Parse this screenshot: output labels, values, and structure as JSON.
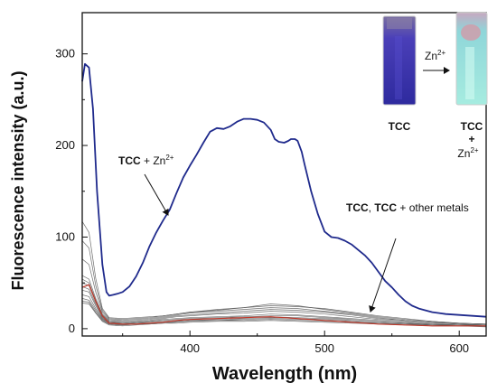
{
  "chart_data": {
    "type": "line",
    "xlabel": "Wavelength (nm)",
    "ylabel": "Fluorescence intensity (a.u.)",
    "xlim": [
      320,
      620
    ],
    "ylim": [
      -8,
      345
    ],
    "x_ticks": [
      400,
      500,
      600
    ],
    "y_ticks": [
      0,
      100,
      200,
      300
    ],
    "grid": false,
    "series": [
      {
        "name": "TCC + Zn²⁺",
        "color": "#1f2a8c",
        "x": [
          320,
          322,
          325,
          328,
          331,
          335,
          338,
          340,
          343,
          346,
          350,
          355,
          360,
          365,
          370,
          375,
          380,
          385,
          390,
          395,
          400,
          405,
          410,
          415,
          420,
          425,
          430,
          435,
          440,
          445,
          450,
          455,
          460,
          463,
          466,
          470,
          473,
          475,
          478,
          480,
          483,
          485,
          490,
          495,
          500,
          505,
          510,
          515,
          520,
          525,
          530,
          535,
          540,
          545,
          550,
          555,
          560,
          565,
          570,
          575,
          580,
          585,
          590,
          600,
          610,
          620
        ],
        "y": [
          270,
          289,
          285,
          240,
          150,
          70,
          40,
          36,
          37,
          38,
          40,
          46,
          57,
          72,
          90,
          105,
          118,
          130,
          148,
          165,
          178,
          190,
          203,
          215,
          219,
          218,
          221,
          226,
          229,
          229,
          228,
          225,
          217,
          207,
          204,
          203,
          205,
          207,
          207,
          205,
          193,
          180,
          150,
          125,
          106,
          100,
          99,
          96,
          92,
          86,
          80,
          72,
          62,
          52,
          45,
          37,
          30,
          25,
          22,
          20,
          18,
          17,
          16,
          15,
          14,
          13
        ]
      },
      {
        "name": "TCC",
        "color": "#c0392b",
        "x": [
          320,
          325,
          330,
          335,
          340,
          350,
          360,
          370,
          380,
          390,
          400,
          420,
          440,
          460,
          480,
          500,
          520,
          540,
          560,
          580,
          600,
          620
        ],
        "y": [
          45,
          48,
          30,
          14,
          6,
          5,
          5,
          6,
          7,
          9,
          10,
          11,
          12,
          13,
          11,
          9,
          7,
          5,
          4,
          3,
          3,
          3
        ]
      }
    ],
    "other_series": [
      [
        117,
        105,
        55,
        22,
        12,
        11,
        12,
        13,
        14,
        16,
        18,
        21,
        23,
        25,
        24,
        22,
        18,
        14,
        11,
        8,
        6,
        5
      ],
      [
        96,
        88,
        47,
        20,
        11,
        10,
        11,
        12,
        14,
        16,
        18,
        20,
        23,
        27,
        25,
        21,
        17,
        13,
        10,
        8,
        6,
        5
      ],
      [
        76,
        70,
        40,
        18,
        10,
        9,
        10,
        11,
        13,
        15,
        17,
        19,
        21,
        23,
        22,
        19,
        16,
        12,
        9,
        7,
        6,
        5
      ],
      [
        58,
        54,
        33,
        16,
        9,
        8,
        9,
        10,
        12,
        14,
        15,
        17,
        19,
        21,
        20,
        18,
        15,
        11,
        9,
        7,
        5,
        4
      ],
      [
        54,
        50,
        31,
        15,
        8,
        7,
        8,
        9,
        11,
        13,
        14,
        16,
        17,
        19,
        18,
        16,
        13,
        10,
        8,
        6,
        5,
        4
      ],
      [
        50,
        47,
        29,
        14,
        7,
        6,
        7,
        8,
        10,
        11,
        12,
        13,
        14,
        16,
        15,
        13,
        11,
        9,
        7,
        5,
        4,
        4
      ],
      [
        46,
        43,
        27,
        13,
        7,
        6,
        7,
        8,
        9,
        10,
        11,
        12,
        13,
        14,
        14,
        12,
        10,
        8,
        6,
        5,
        4,
        3
      ],
      [
        42,
        40,
        25,
        12,
        6,
        5,
        6,
        7,
        8,
        9,
        10,
        11,
        12,
        13,
        12,
        11,
        9,
        7,
        6,
        4,
        4,
        3
      ],
      [
        37,
        35,
        22,
        11,
        6,
        5,
        6,
        6,
        7,
        8,
        9,
        10,
        11,
        12,
        11,
        10,
        8,
        6,
        5,
        4,
        3,
        3
      ],
      [
        33,
        31,
        20,
        10,
        5,
        4,
        5,
        6,
        7,
        8,
        9,
        9,
        10,
        11,
        10,
        9,
        7,
        6,
        5,
        4,
        3,
        3
      ],
      [
        30,
        29,
        18,
        9,
        5,
        4,
        5,
        5,
        6,
        7,
        8,
        9,
        9,
        10,
        9,
        8,
        7,
        5,
        4,
        3,
        3,
        3
      ],
      [
        28,
        27,
        17,
        8,
        4,
        3,
        4,
        5,
        6,
        6,
        7,
        8,
        8,
        9,
        8,
        7,
        6,
        5,
        4,
        3,
        3,
        2
      ]
    ],
    "other_series_x": [
      320,
      325,
      330,
      335,
      340,
      350,
      360,
      370,
      380,
      390,
      400,
      420,
      440,
      460,
      480,
      500,
      520,
      540,
      560,
      580,
      600,
      620
    ],
    "other_series_color": "#555555",
    "annotations": [
      {
        "bold": "TCC",
        "text": " + Zn",
        "sup": "2+"
      },
      {
        "parts": [
          {
            "text": "TCC",
            "bold": true
          },
          {
            "text": ", ",
            "bold": false
          },
          {
            "text": "TCC",
            "bold": true
          },
          {
            "text": " + other metals",
            "bold": false
          }
        ]
      }
    ],
    "inset": {
      "left_label": "TCC",
      "arrow_label": "Zn",
      "arrow_label_sup": "2+",
      "right_label_lines": [
        "TCC",
        "+",
        "Zn"
      ],
      "right_label_sup": "2+",
      "left_cuvette_color": "#3b33b0",
      "right_cuvette_color": "#9fe4df"
    }
  }
}
